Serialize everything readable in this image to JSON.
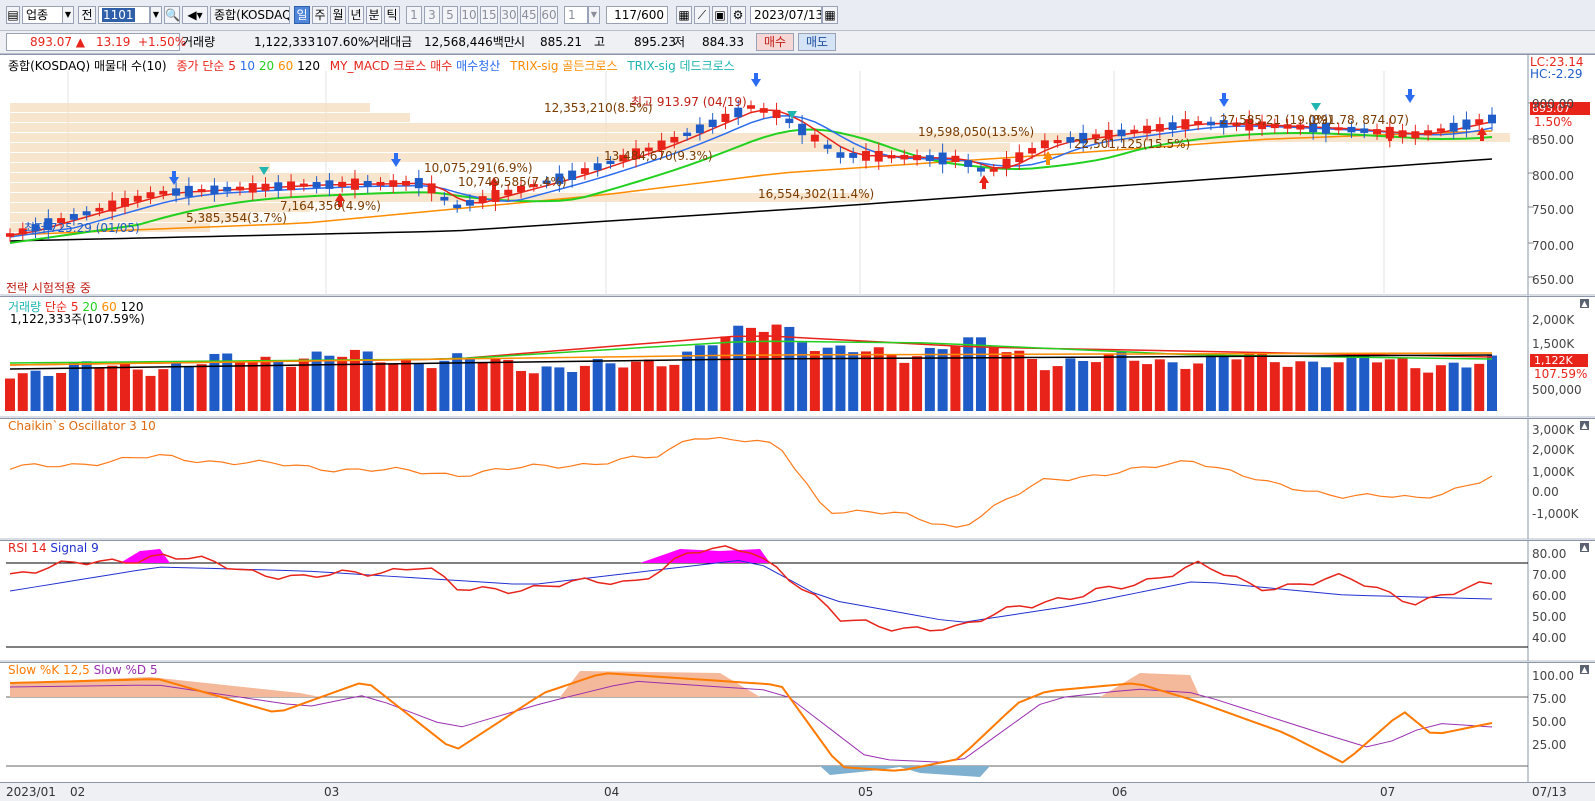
{
  "toolbar": {
    "category": "업종",
    "prev": "전",
    "code": "1101",
    "market": "종합(KOSDAQ)",
    "periods": [
      "일",
      "주",
      "월",
      "년",
      "분",
      "틱"
    ],
    "intervals": [
      "1",
      "3",
      "5",
      "10",
      "15",
      "30",
      "45",
      "60"
    ],
    "count_value": "1",
    "position": "117/600",
    "date": "2023/07/13"
  },
  "quote": {
    "price": "893.07 ▲",
    "change": "13.19",
    "pct": "+1.50%",
    "vol_label": "거래량",
    "volume": "1,122,333",
    "vol_pct": "107.60%",
    "amt_label": "거래대금",
    "amount": "12,568,446백만",
    "open_label": "시",
    "open": "885.21",
    "high_label": "고",
    "high": "895.23",
    "low_label": "저",
    "low": "884.33",
    "buy": "매수",
    "sell": "매도"
  },
  "colors": {
    "up": "#e8231a",
    "down": "#1f5cc8",
    "ma5": "#e8231a",
    "ma10": "#2b6cf0",
    "ma20": "#22d11f",
    "ma60": "#ff8c00",
    "ma120": "#000000"
  },
  "main": {
    "legend": {
      "title": "종합(KOSDAQ) 매물대 수(10)",
      "ma": "종가 단순",
      "p5": "5",
      "p10": "10",
      "p20": "20",
      "p60": "60",
      "p120": "120",
      "macd": "MY_MACD 크로스 매수",
      "exit": "매수청산",
      "trix_g": "TRIX-sig 골든크로스",
      "trix_d": "TRIX-sig 데드크로스"
    },
    "lc": "LC:23.14",
    "hc": "HC:-2.29",
    "strategy": "전략 시험적용 중",
    "hi_label": "최고 913.97 (04/19)",
    "lo_label": "최저 725.29 (01/05)",
    "price_tag": "893.07",
    "pct_tag": "1.50%",
    "y_ticks": [
      "900.00",
      "850.00",
      "800.00",
      "750.00",
      "700.00",
      "650.00"
    ],
    "profile": [
      "12,353,210(8.5%)",
      "13,484,670(9.3%)",
      "10,075,291(6.9%)",
      "10,749,585(7.4%)",
      "7,164,356(4.9%)",
      "5,385,354(3.7%)",
      "19,598,050(13.5%)",
      "22,501,125(15.5%)",
      "16,554,302(11.4%)",
      "27,585,21 (19.0%)",
      "(891.78, 874.07)"
    ]
  },
  "volume": {
    "legend": {
      "title": "거래량",
      "ma": "단순",
      "p5": "5",
      "p20": "20",
      "p60": "60",
      "p120": "120"
    },
    "info": "1,122,333주(107.59%)",
    "tag": "1,122K",
    "pct_tag": "107.59%",
    "y_ticks": [
      "2,000K",
      "1,500K",
      "1,000K",
      "500,000"
    ]
  },
  "chaikin": {
    "legend": "Chaikin`s Oscillator 3 10",
    "y_ticks": [
      "3,000K",
      "2,000K",
      "1,000K",
      "0.00",
      "-1,000K"
    ]
  },
  "rsi": {
    "legend1": "RSI 14",
    "legend2": "Signal 9",
    "y_ticks": [
      "80.00",
      "70.00",
      "60.00",
      "50.00",
      "40.00"
    ]
  },
  "stoch": {
    "legend1": "Slow %K 12,5",
    "legend2": "Slow %D 5",
    "y_ticks": [
      "100.00",
      "75.00",
      "50.00",
      "25.00"
    ]
  },
  "dates": [
    "2023/01",
    "02",
    "03",
    "04",
    "05",
    "06",
    "07"
  ],
  "end_date": "07/13"
}
